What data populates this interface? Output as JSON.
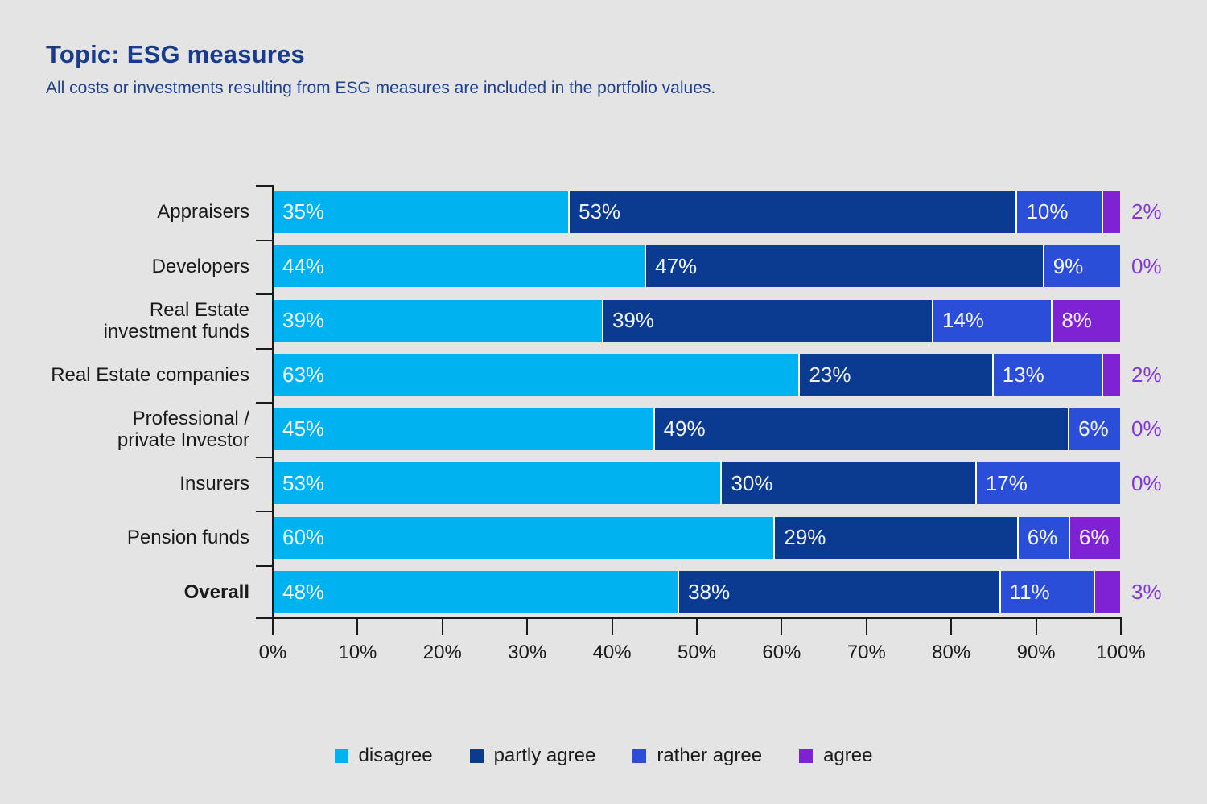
{
  "title": "Topic: ESG measures",
  "subtitle": "All costs or investments resulting from ESG measures are included in the portfolio values.",
  "colors": {
    "background": "#e4e4e4",
    "title_text": "#173c8e",
    "axis": "#1a1a1a",
    "inside_value_label": "#ffffff",
    "outside_value_label": "#8136d6",
    "segment_separator": "#ffffff",
    "disagree": "#00b2ef",
    "partly_agree": "#0b3a91",
    "rather_agree": "#2b4ed9",
    "agree": "#7e22d4"
  },
  "chart_data": {
    "type": "bar",
    "orientation": "horizontal",
    "stacked": true,
    "unit": "%",
    "title": "Topic: ESG measures",
    "subtitle": "All costs or investments resulting from ESG measures are included in the portfolio values.",
    "categories": [
      "Appraisers",
      "Developers",
      "Real Estate\ninvestment funds",
      "Real Estate companies",
      "Professional /\nprivate Investor",
      "Insurers",
      "Pension funds",
      "Overall"
    ],
    "bold_category_index": 7,
    "series": [
      {
        "name": "disagree",
        "color": "#00b2ef",
        "values": [
          35,
          44,
          39,
          63,
          45,
          53,
          60,
          48
        ]
      },
      {
        "name": "partly agree",
        "color": "#0b3a91",
        "values": [
          53,
          47,
          39,
          23,
          49,
          30,
          29,
          38
        ]
      },
      {
        "name": "rather agree",
        "color": "#2b4ed9",
        "values": [
          10,
          9,
          14,
          13,
          6,
          17,
          6,
          11
        ]
      },
      {
        "name": "agree",
        "color": "#7e22d4",
        "values": [
          2,
          0,
          8,
          2,
          0,
          0,
          6,
          3
        ]
      }
    ],
    "xlim": [
      0,
      100
    ],
    "x_tick_labels": [
      "0%",
      "10%",
      "20%",
      "30%",
      "40%",
      "50%",
      "60%",
      "70%",
      "80%",
      "90%",
      "100%"
    ],
    "grid": false,
    "legend_position": "bottom",
    "legend": [
      "disagree",
      "partly agree",
      "rather agree",
      "agree"
    ]
  }
}
